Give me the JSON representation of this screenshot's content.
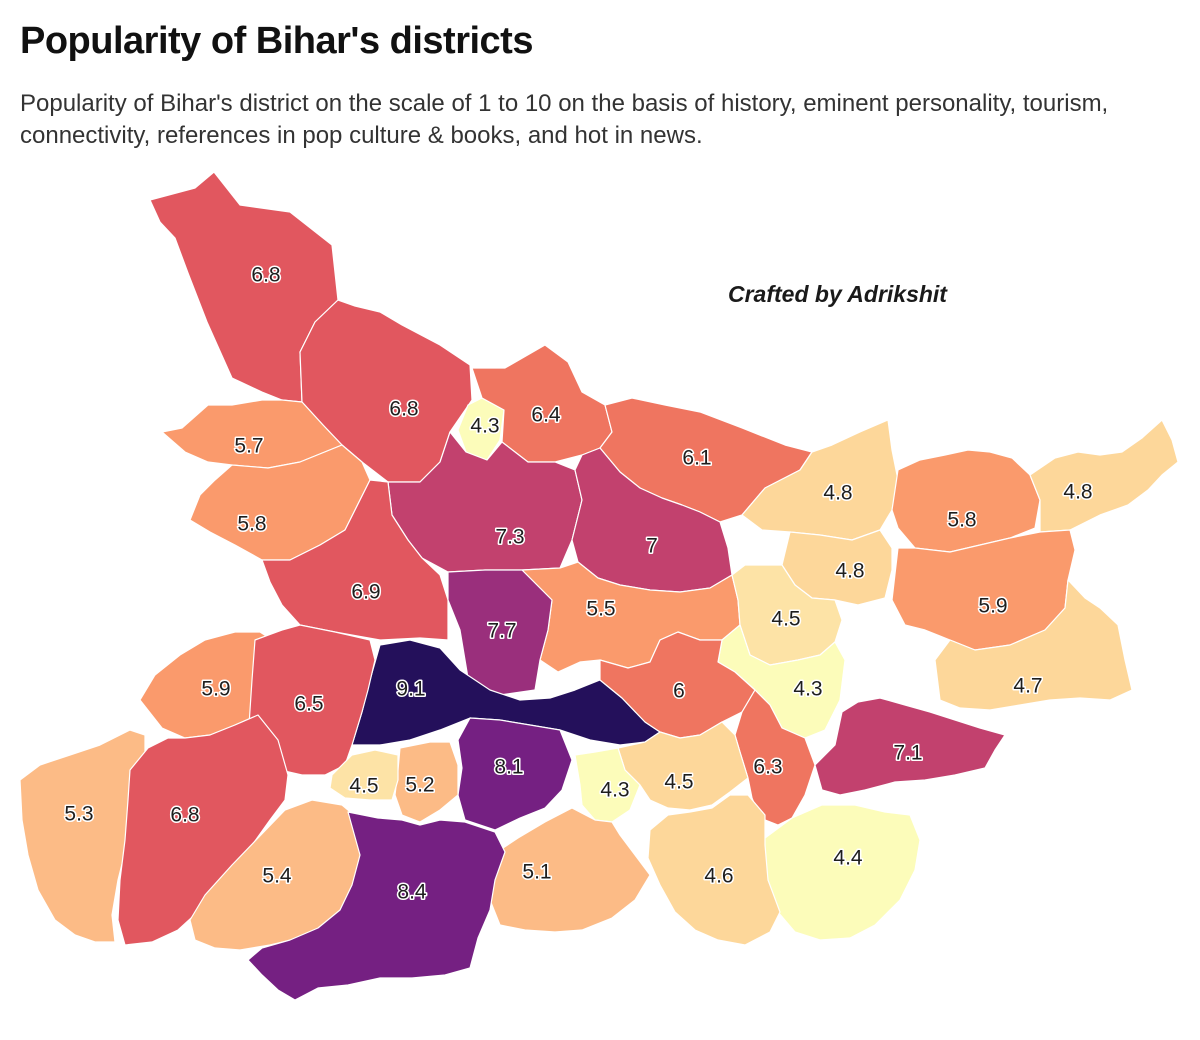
{
  "title": "Popularity of Bihar's districts",
  "subtitle": "Popularity of Bihar's district on the scale of 1 to 10 on the basis of history, eminent personality, tourism, connectivity, references in pop culture & books, and hot in news.",
  "credit": "Crafted by Adrikshit",
  "colors": {
    "background": "#ffffff",
    "border": "#ffffff",
    "scale": [
      "#fcfdbf",
      "#fddea0",
      "#fcbb86",
      "#fa9a6c",
      "#ef7560",
      "#e1575f",
      "#c2416e",
      "#9a2f7c",
      "#752082",
      "#4e1179",
      "#24105b"
    ]
  },
  "districts": [
    {
      "value": "6.8",
      "color": "#e1575f"
    },
    {
      "value": "6.8",
      "color": "#e1575f"
    },
    {
      "value": "4.3",
      "color": "#fcfcba"
    },
    {
      "value": "6.4",
      "color": "#ef7560"
    },
    {
      "value": "5.7",
      "color": "#fa9a6c"
    },
    {
      "value": "6.1",
      "color": "#ef7560"
    },
    {
      "value": "4.8",
      "color": "#fdd79a"
    },
    {
      "value": "5.8",
      "color": "#fa9a6c"
    },
    {
      "value": "4.8",
      "color": "#fdd79a"
    },
    {
      "value": "5.8",
      "color": "#fa9a6c"
    },
    {
      "value": "7.3",
      "color": "#c2416e"
    },
    {
      "value": "7",
      "color": "#c2416e"
    },
    {
      "value": "4.8",
      "color": "#fdd79a"
    },
    {
      "value": "6.9",
      "color": "#e1575f"
    },
    {
      "value": "5.9",
      "color": "#fa9a6c"
    },
    {
      "value": "5.5",
      "color": "#fa9a6c"
    },
    {
      "value": "4.5",
      "color": "#fde3a6"
    },
    {
      "value": "7.7",
      "color": "#9a2f7c"
    },
    {
      "value": "4.7",
      "color": "#fdd79a"
    },
    {
      "value": "5.9",
      "color": "#fa9a6c"
    },
    {
      "value": "9.1",
      "color": "#24105b"
    },
    {
      "value": "4.3",
      "color": "#fcfcba"
    },
    {
      "value": "6.5",
      "color": "#e1575f"
    },
    {
      "value": "6",
      "color": "#ef7560"
    },
    {
      "value": "7.1",
      "color": "#c2416e"
    },
    {
      "value": "6.3",
      "color": "#ef7560"
    },
    {
      "value": "8.1",
      "color": "#752082"
    },
    {
      "value": "4.5",
      "color": "#fdd79a"
    },
    {
      "value": "5.2",
      "color": "#fcbb86"
    },
    {
      "value": "4.5",
      "color": "#fde3a6"
    },
    {
      "value": "4.3",
      "color": "#fcfcba"
    },
    {
      "value": "5.3",
      "color": "#fcbb86"
    },
    {
      "value": "6.8",
      "color": "#e1575f"
    },
    {
      "value": "4.4",
      "color": "#fcfcba"
    },
    {
      "value": "5.4",
      "color": "#fcbb86"
    },
    {
      "value": "5.1",
      "color": "#fcbb86"
    },
    {
      "value": "4.6",
      "color": "#fdd79a"
    },
    {
      "value": "8.4",
      "color": "#752082"
    }
  ]
}
